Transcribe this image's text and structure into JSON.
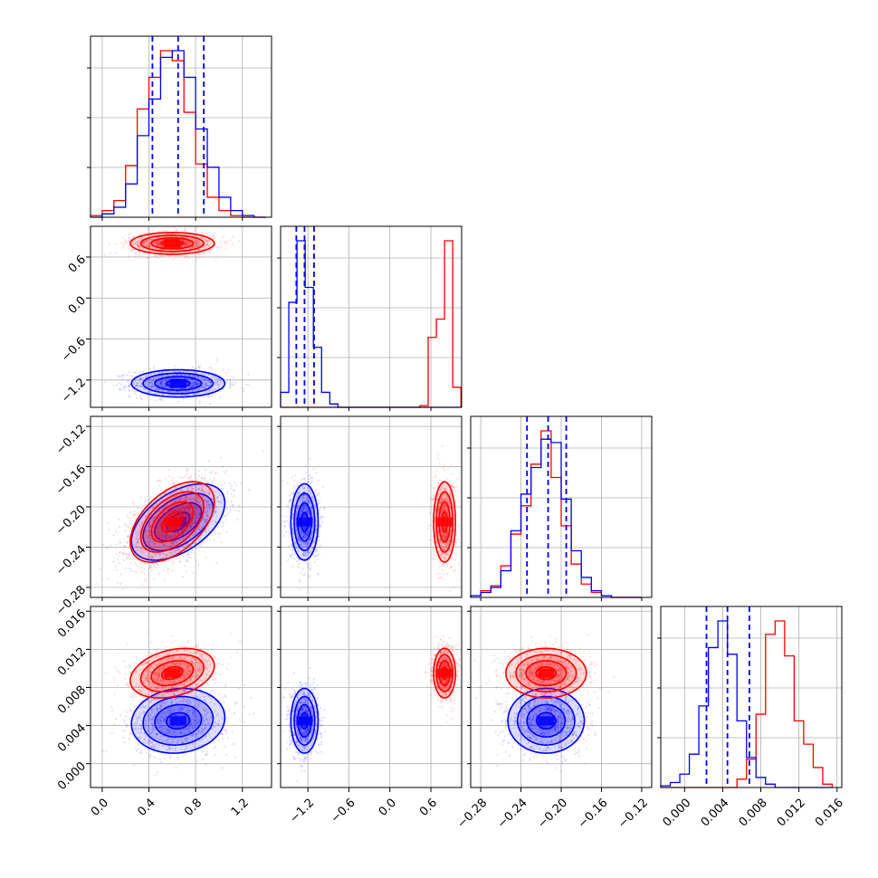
{
  "chart_data": {
    "type": "corner",
    "grid": true,
    "parameters": [
      {
        "range": [
          -0.1,
          1.45
        ],
        "ticks": [
          0.0,
          0.4,
          0.8,
          1.2
        ],
        "tick_labels": [
          "0.0",
          "0.4",
          "0.8",
          "1.2"
        ]
      },
      {
        "range": [
          -1.6,
          1.05
        ],
        "ticks": [
          -1.2,
          -0.6,
          0.0,
          0.6
        ],
        "tick_labels": [
          "−1.2",
          "−0.6",
          "0.0",
          "0.6"
        ]
      },
      {
        "range": [
          -0.29,
          -0.11
        ],
        "ticks": [
          -0.28,
          -0.24,
          -0.2,
          -0.16,
          -0.12
        ],
        "tick_labels": [
          "−0.28",
          "−0.24",
          "−0.20",
          "−0.16",
          "−0.12"
        ]
      },
      {
        "range": [
          -0.0025,
          0.0165
        ],
        "ticks": [
          0.0,
          0.004,
          0.008,
          0.012,
          0.016
        ],
        "tick_labels": [
          "0.000",
          "0.004",
          "0.008",
          "0.012",
          "0.016"
        ]
      }
    ],
    "series": [
      {
        "color": "#ff0000",
        "means": [
          0.6,
          0.8,
          -0.215,
          0.0095
        ],
        "sigmas": [
          0.18,
          0.08,
          0.02,
          0.0013
        ],
        "correlations": [
          [
            0,
            2,
            0.5
          ],
          [
            0,
            3,
            0.3
          ]
        ],
        "histograms": [
          {
            "bins": [
              -0.1,
              0.0,
              0.1,
              0.2,
              0.3,
              0.4,
              0.5,
              0.6,
              0.7,
              0.8,
              0.9,
              1.0,
              1.1,
              1.2,
              1.3,
              1.4
            ],
            "counts": [
              0.01,
              0.04,
              0.1,
              0.31,
              0.65,
              0.84,
              1.0,
              0.94,
              0.63,
              0.32,
              0.12,
              0.04,
              0.01,
              0.0,
              0.0
            ]
          },
          {
            "bins": [
              -1.6,
              -1.48,
              -1.36,
              -1.24,
              -1.12,
              -1.0,
              -0.88,
              -0.76,
              -0.64,
              -0.52,
              -0.4,
              -0.28,
              -0.16,
              -0.04,
              0.08,
              0.2,
              0.32,
              0.44,
              0.56,
              0.68,
              0.8,
              0.92,
              1.04
            ],
            "counts": [
              0,
              0,
              0,
              0,
              0,
              0,
              0,
              0,
              0,
              0,
              0,
              0,
              0,
              0,
              0,
              0,
              0,
              0.01,
              0.42,
              0.53,
              1.0,
              0.12
            ]
          },
          {
            "bins": [
              -0.29,
              -0.28,
              -0.27,
              -0.26,
              -0.25,
              -0.24,
              -0.23,
              -0.22,
              -0.21,
              -0.2,
              -0.19,
              -0.18,
              -0.17,
              -0.16,
              -0.15,
              -0.14,
              -0.13,
              -0.12
            ],
            "counts": [
              0.01,
              0.04,
              0.07,
              0.19,
              0.38,
              0.55,
              0.8,
              1.0,
              0.72,
              0.43,
              0.2,
              0.08,
              0.03,
              0.01,
              0.0,
              0.0,
              0.0
            ]
          },
          {
            "bins": [
              -0.0025,
              -0.0015,
              -0.0005,
              0.0005,
              0.0015,
              0.0025,
              0.0035,
              0.0045,
              0.0055,
              0.0065,
              0.0075,
              0.0085,
              0.0095,
              0.0105,
              0.0115,
              0.0125,
              0.0135,
              0.0145,
              0.0155
            ],
            "counts": [
              0,
              0,
              0,
              0,
              0,
              0,
              0,
              0,
              0.05,
              0.17,
              0.44,
              0.92,
              1.0,
              0.79,
              0.4,
              0.26,
              0.12,
              0.02
            ]
          }
        ]
      },
      {
        "color": "#0000ff",
        "means": [
          0.65,
          -1.25,
          -0.215,
          0.0045
        ],
        "sigmas": [
          0.2,
          0.1,
          0.019,
          0.0017
        ],
        "correlations": [
          [
            0,
            2,
            0.5
          ],
          [
            0,
            3,
            0.1
          ]
        ],
        "histograms": [
          {
            "bins": [
              -0.1,
              0.0,
              0.1,
              0.2,
              0.3,
              0.4,
              0.5,
              0.6,
              0.7,
              0.8,
              0.9,
              1.0,
              1.1,
              1.2,
              1.3,
              1.4
            ],
            "counts": [
              0.0,
              0.02,
              0.06,
              0.2,
              0.49,
              0.71,
              0.96,
              1.0,
              0.84,
              0.53,
              0.3,
              0.12,
              0.04,
              0.01,
              0.0
            ]
          },
          {
            "bins": [
              -1.6,
              -1.48,
              -1.36,
              -1.24,
              -1.12,
              -1.0,
              -0.88,
              -0.76,
              -0.64,
              -0.52,
              -0.4,
              -0.28,
              -0.16,
              -0.04,
              0.08,
              0.2,
              0.32,
              0.44,
              0.56,
              0.68,
              0.8,
              0.92,
              1.04
            ],
            "counts": [
              0.09,
              0.63,
              1.0,
              0.72,
              0.36,
              0.09,
              0.02,
              0,
              0,
              0,
              0,
              0,
              0,
              0,
              0,
              0,
              0,
              0,
              0,
              0,
              0,
              0
            ]
          },
          {
            "bins": [
              -0.29,
              -0.28,
              -0.27,
              -0.26,
              -0.25,
              -0.24,
              -0.23,
              -0.22,
              -0.21,
              -0.2,
              -0.19,
              -0.18,
              -0.17,
              -0.16,
              -0.15,
              -0.14,
              -0.13,
              -0.12
            ],
            "counts": [
              0.01,
              0.03,
              0.06,
              0.16,
              0.4,
              0.62,
              0.78,
              0.95,
              0.93,
              0.59,
              0.28,
              0.12,
              0.04,
              0.01,
              0.0,
              0.0,
              0.0
            ]
          },
          {
            "bins": [
              -0.0025,
              -0.0015,
              -0.0005,
              0.0005,
              0.0015,
              0.0025,
              0.0035,
              0.0045,
              0.0055,
              0.0065,
              0.0075,
              0.0085,
              0.0095,
              0.0105,
              0.0115,
              0.0125,
              0.0135,
              0.0145,
              0.0155
            ],
            "counts": [
              0.01,
              0.03,
              0.08,
              0.2,
              0.49,
              0.84,
              1.0,
              0.8,
              0.4,
              0.18,
              0.06,
              0.02,
              0.0,
              0.0,
              0.0,
              0.0,
              0.0,
              0.0
            ]
          }
        ]
      }
    ],
    "quantile_lines": {
      "color": "#0000ff",
      "style": "dashed",
      "values": [
        [
          0.43,
          0.65,
          0.87
        ],
        [
          -1.37,
          -1.25,
          -1.11
        ],
        [
          -0.234,
          -0.213,
          -0.195
        ],
        [
          0.0023,
          0.0045,
          0.0068
        ]
      ]
    }
  }
}
